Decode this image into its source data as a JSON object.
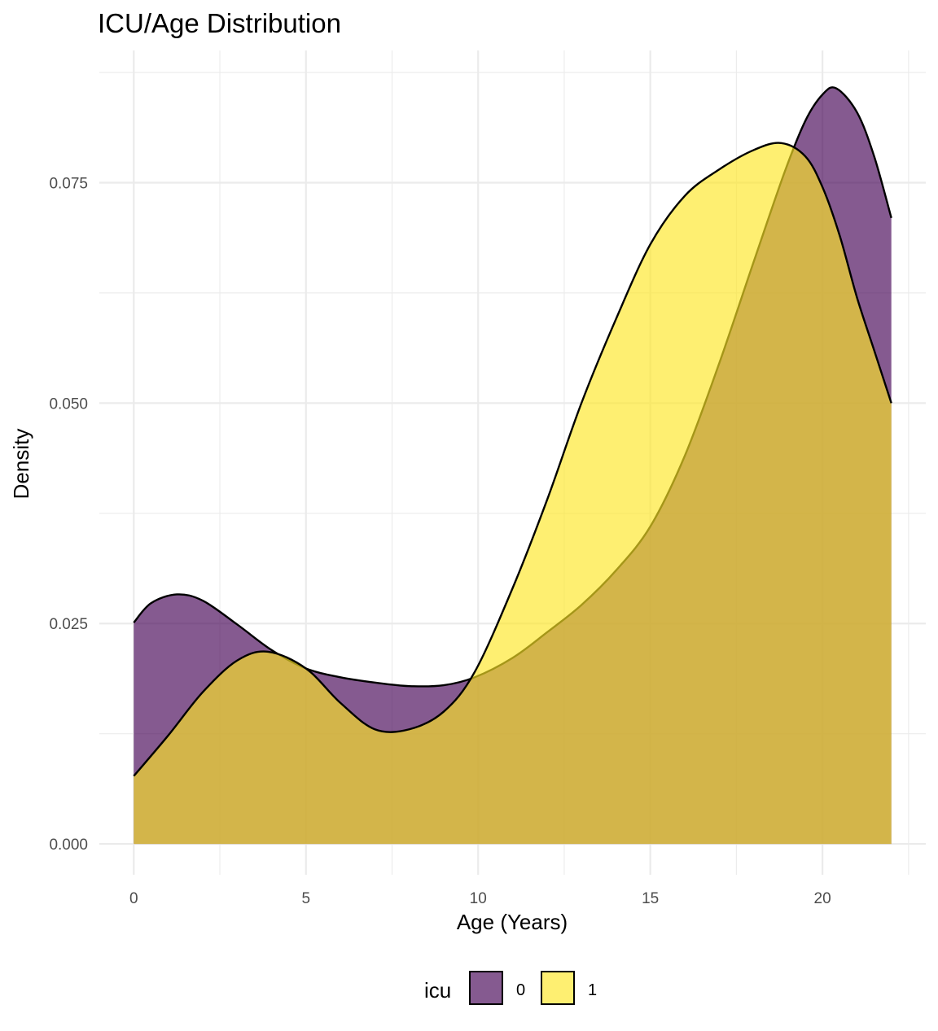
{
  "chart_data": {
    "type": "area",
    "subtype": "density",
    "title": "ICU/Age Distribution",
    "xlabel": "Age (Years)",
    "ylabel": "Density",
    "xlim": [
      -1.0,
      23.0
    ],
    "ylim": [
      -0.0035,
      0.09
    ],
    "x_ticks": [
      0,
      5,
      10,
      15,
      20
    ],
    "x_tick_labels": [
      "0",
      "5",
      "10",
      "15",
      "20"
    ],
    "y_ticks": [
      0.0,
      0.025,
      0.05,
      0.075
    ],
    "y_tick_labels": [
      "0.000",
      "0.025",
      "0.050",
      "0.075"
    ],
    "grid": true,
    "legend": {
      "title": "icu",
      "position": "bottom"
    },
    "series": [
      {
        "name": "0",
        "color": "#440154",
        "opacity": 0.65,
        "x": [
          0,
          0.5,
          1.25,
          2,
          3,
          4,
          5,
          6,
          7,
          8,
          9,
          9.9,
          11,
          12,
          13,
          14,
          15,
          16,
          17,
          18,
          18.9,
          19.5,
          20,
          20.4,
          21,
          21.5,
          22
        ],
        "y": [
          0.0251,
          0.0273,
          0.0283,
          0.0276,
          0.0249,
          0.022,
          0.0199,
          0.0189,
          0.0183,
          0.0179,
          0.018,
          0.0189,
          0.0211,
          0.024,
          0.0271,
          0.031,
          0.036,
          0.044,
          0.0545,
          0.066,
          0.0762,
          0.082,
          0.085,
          0.0857,
          0.083,
          0.078,
          0.071
        ]
      },
      {
        "name": "1",
        "color": "#FDE725",
        "opacity": 0.65,
        "x": [
          0,
          1,
          2,
          3,
          3.9,
          5,
          6,
          7,
          8,
          9,
          9.9,
          11,
          12,
          13,
          14,
          15,
          16,
          17,
          18,
          18.8,
          19.5,
          20,
          20.5,
          21,
          21.5,
          22
        ],
        "y": [
          0.0077,
          0.0123,
          0.0172,
          0.0208,
          0.0218,
          0.0199,
          0.016,
          0.013,
          0.013,
          0.015,
          0.0195,
          0.029,
          0.039,
          0.05,
          0.0595,
          0.068,
          0.0735,
          0.0765,
          0.0787,
          0.0795,
          0.078,
          0.0745,
          0.069,
          0.062,
          0.056,
          0.05
        ]
      }
    ]
  }
}
